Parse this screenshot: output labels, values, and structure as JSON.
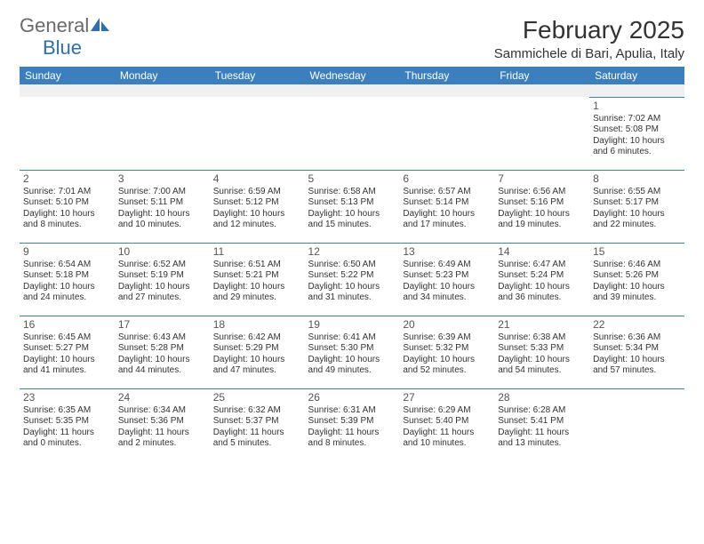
{
  "logo": {
    "word1": "General",
    "word2": "Blue",
    "word1_color": "#6a6a6a",
    "word2_color": "#2f6fb0",
    "icon_color": "#2f6fb0"
  },
  "header": {
    "month_title": "February 2025",
    "location": "Sammichele di Bari, Apulia, Italy"
  },
  "style": {
    "header_bg": "#3b7fbf",
    "header_fg": "#ffffff",
    "row_border": "#3b7fbf",
    "blank_row_bg": "#f0f0f0",
    "body_font_size": 10,
    "daynum_color": "#555555"
  },
  "weekdays": [
    "Sunday",
    "Monday",
    "Tuesday",
    "Wednesday",
    "Thursday",
    "Friday",
    "Saturday"
  ],
  "weeks": [
    [
      null,
      null,
      null,
      null,
      null,
      null,
      {
        "n": "1",
        "sr": "7:02 AM",
        "ss": "5:08 PM",
        "dl": "10 hours and 6 minutes."
      }
    ],
    [
      {
        "n": "2",
        "sr": "7:01 AM",
        "ss": "5:10 PM",
        "dl": "10 hours and 8 minutes."
      },
      {
        "n": "3",
        "sr": "7:00 AM",
        "ss": "5:11 PM",
        "dl": "10 hours and 10 minutes."
      },
      {
        "n": "4",
        "sr": "6:59 AM",
        "ss": "5:12 PM",
        "dl": "10 hours and 12 minutes."
      },
      {
        "n": "5",
        "sr": "6:58 AM",
        "ss": "5:13 PM",
        "dl": "10 hours and 15 minutes."
      },
      {
        "n": "6",
        "sr": "6:57 AM",
        "ss": "5:14 PM",
        "dl": "10 hours and 17 minutes."
      },
      {
        "n": "7",
        "sr": "6:56 AM",
        "ss": "5:16 PM",
        "dl": "10 hours and 19 minutes."
      },
      {
        "n": "8",
        "sr": "6:55 AM",
        "ss": "5:17 PM",
        "dl": "10 hours and 22 minutes."
      }
    ],
    [
      {
        "n": "9",
        "sr": "6:54 AM",
        "ss": "5:18 PM",
        "dl": "10 hours and 24 minutes."
      },
      {
        "n": "10",
        "sr": "6:52 AM",
        "ss": "5:19 PM",
        "dl": "10 hours and 27 minutes."
      },
      {
        "n": "11",
        "sr": "6:51 AM",
        "ss": "5:21 PM",
        "dl": "10 hours and 29 minutes."
      },
      {
        "n": "12",
        "sr": "6:50 AM",
        "ss": "5:22 PM",
        "dl": "10 hours and 31 minutes."
      },
      {
        "n": "13",
        "sr": "6:49 AM",
        "ss": "5:23 PM",
        "dl": "10 hours and 34 minutes."
      },
      {
        "n": "14",
        "sr": "6:47 AM",
        "ss": "5:24 PM",
        "dl": "10 hours and 36 minutes."
      },
      {
        "n": "15",
        "sr": "6:46 AM",
        "ss": "5:26 PM",
        "dl": "10 hours and 39 minutes."
      }
    ],
    [
      {
        "n": "16",
        "sr": "6:45 AM",
        "ss": "5:27 PM",
        "dl": "10 hours and 41 minutes."
      },
      {
        "n": "17",
        "sr": "6:43 AM",
        "ss": "5:28 PM",
        "dl": "10 hours and 44 minutes."
      },
      {
        "n": "18",
        "sr": "6:42 AM",
        "ss": "5:29 PM",
        "dl": "10 hours and 47 minutes."
      },
      {
        "n": "19",
        "sr": "6:41 AM",
        "ss": "5:30 PM",
        "dl": "10 hours and 49 minutes."
      },
      {
        "n": "20",
        "sr": "6:39 AM",
        "ss": "5:32 PM",
        "dl": "10 hours and 52 minutes."
      },
      {
        "n": "21",
        "sr": "6:38 AM",
        "ss": "5:33 PM",
        "dl": "10 hours and 54 minutes."
      },
      {
        "n": "22",
        "sr": "6:36 AM",
        "ss": "5:34 PM",
        "dl": "10 hours and 57 minutes."
      }
    ],
    [
      {
        "n": "23",
        "sr": "6:35 AM",
        "ss": "5:35 PM",
        "dl": "11 hours and 0 minutes."
      },
      {
        "n": "24",
        "sr": "6:34 AM",
        "ss": "5:36 PM",
        "dl": "11 hours and 2 minutes."
      },
      {
        "n": "25",
        "sr": "6:32 AM",
        "ss": "5:37 PM",
        "dl": "11 hours and 5 minutes."
      },
      {
        "n": "26",
        "sr": "6:31 AM",
        "ss": "5:39 PM",
        "dl": "11 hours and 8 minutes."
      },
      {
        "n": "27",
        "sr": "6:29 AM",
        "ss": "5:40 PM",
        "dl": "11 hours and 10 minutes."
      },
      {
        "n": "28",
        "sr": "6:28 AM",
        "ss": "5:41 PM",
        "dl": "11 hours and 13 minutes."
      },
      null
    ]
  ],
  "labels": {
    "sunrise": "Sunrise:",
    "sunset": "Sunset:",
    "daylight": "Daylight:"
  }
}
